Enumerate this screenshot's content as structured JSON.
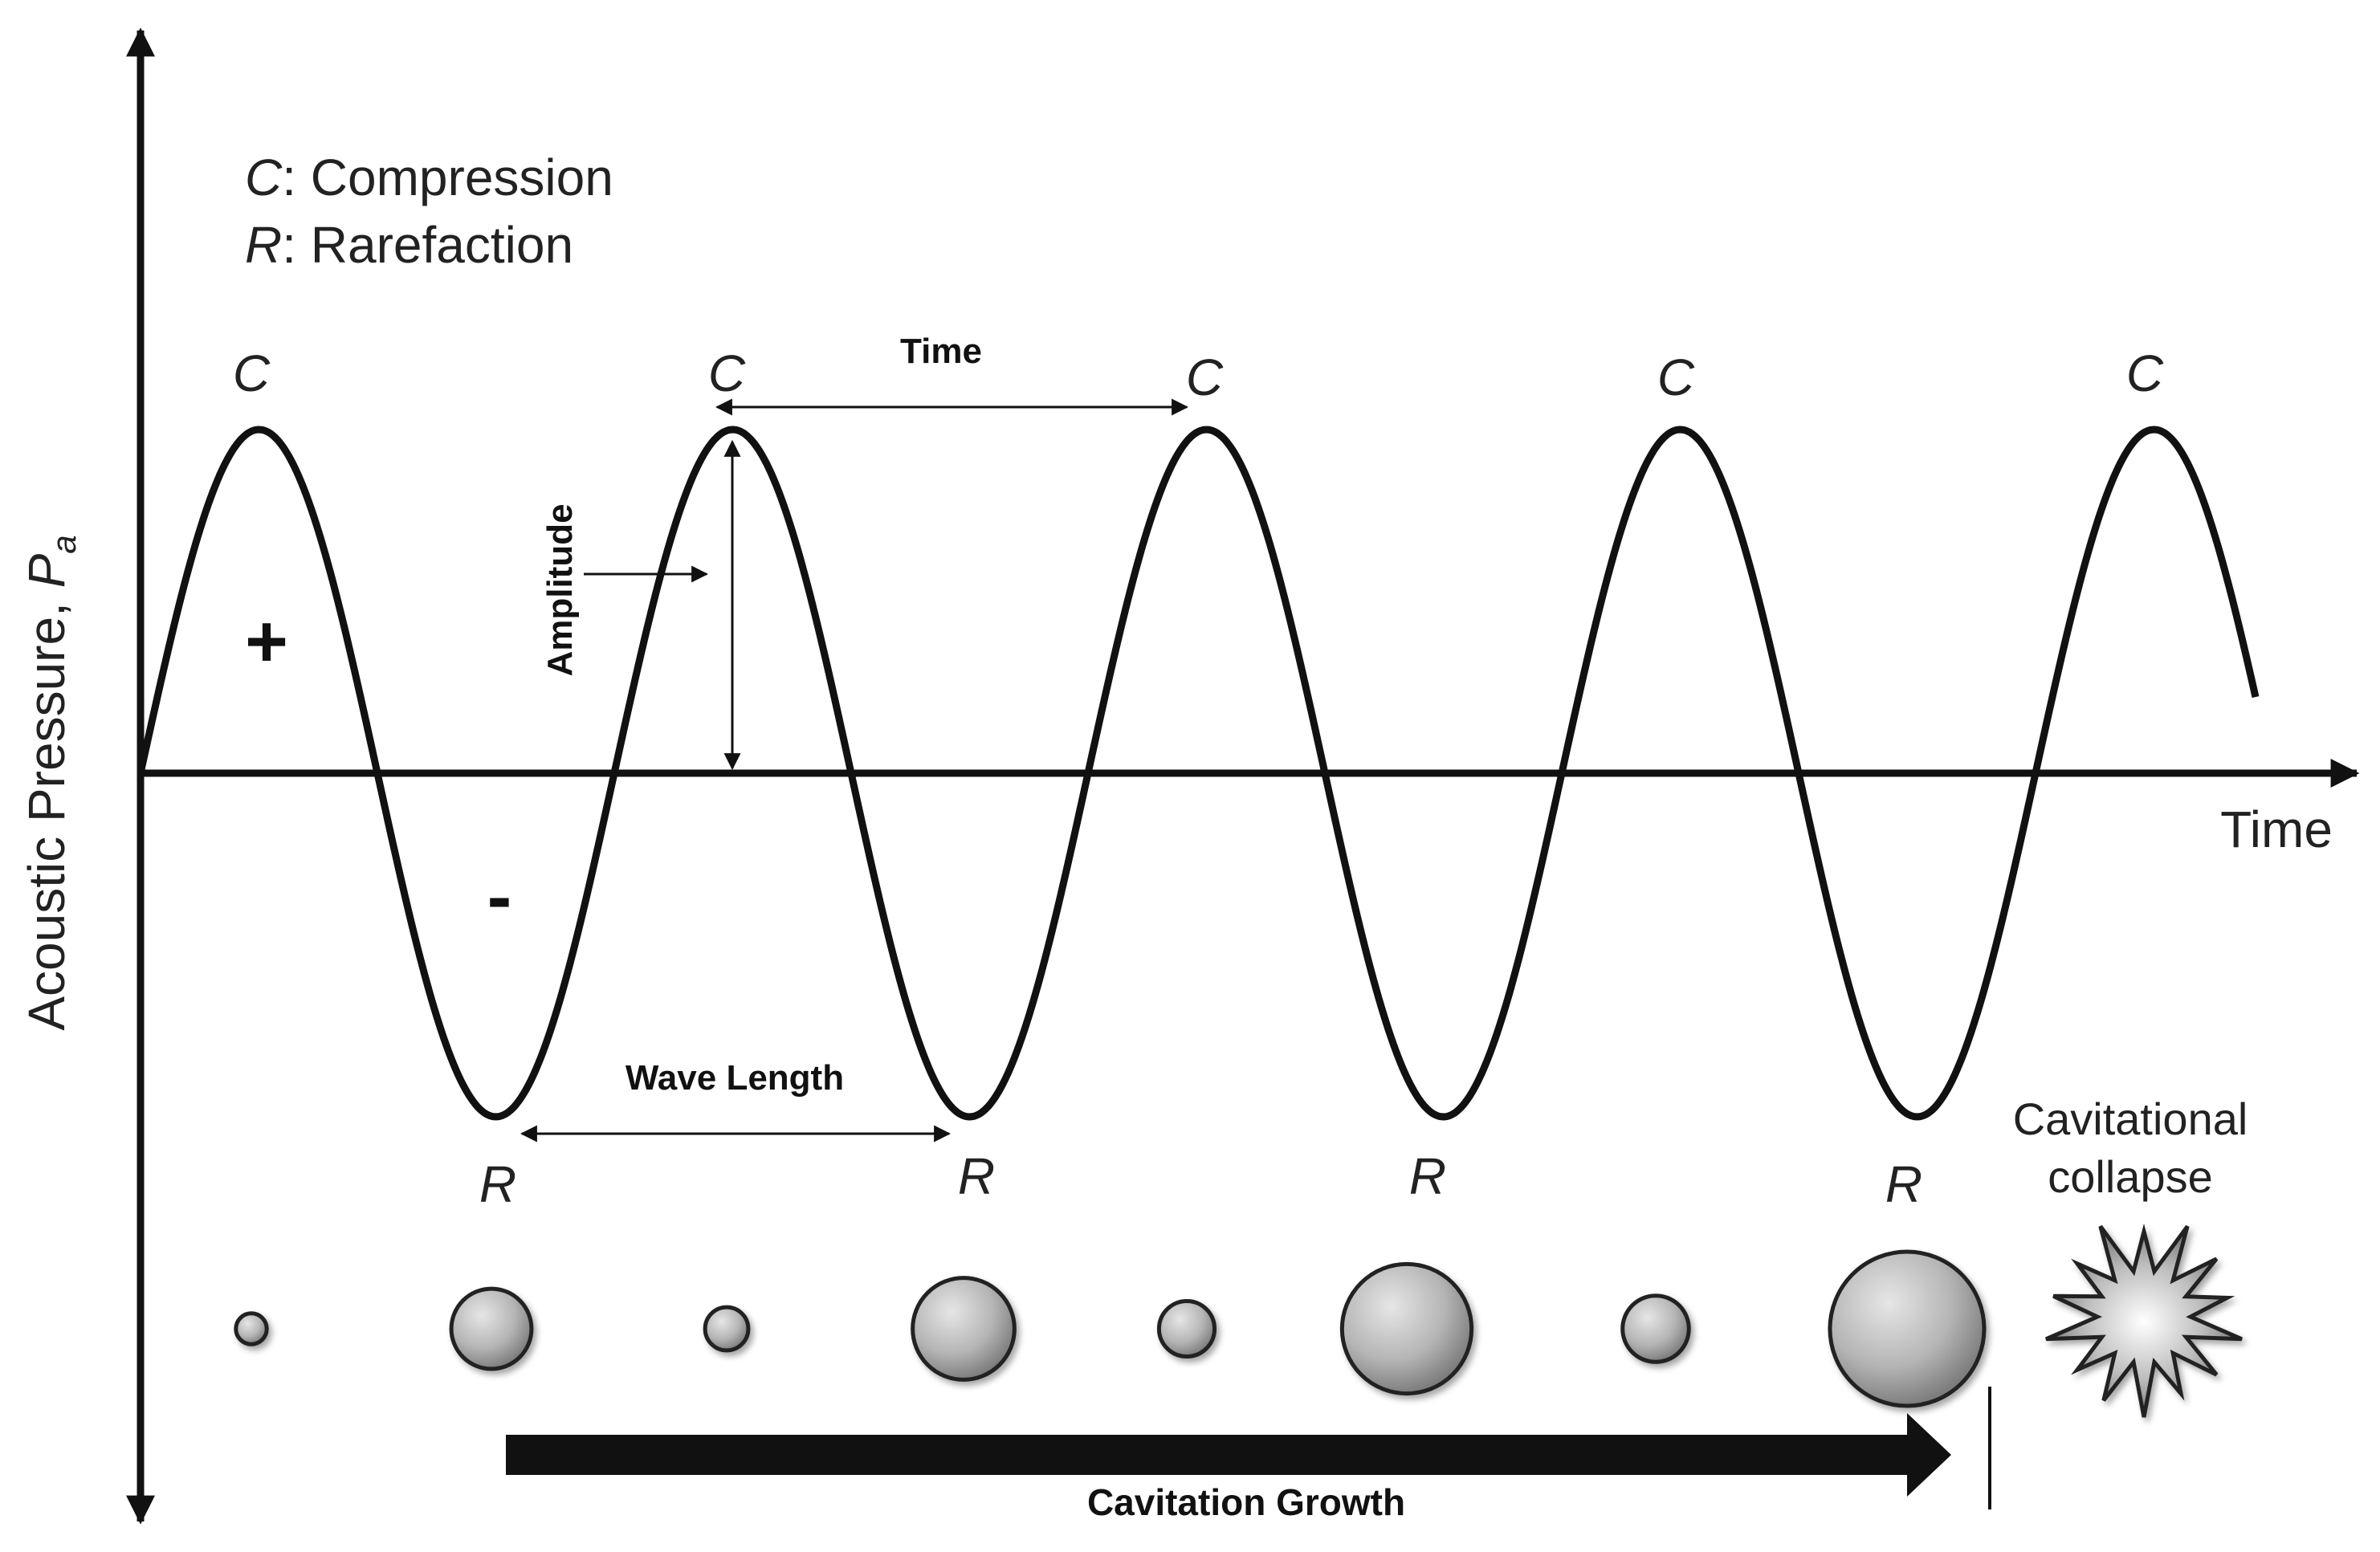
{
  "legend": {
    "c_symbol": "C",
    "c_text": ": Compression",
    "r_symbol": "R",
    "r_text": ": Rarefaction"
  },
  "y_axis_label_main": "Acoustic Pressure, ",
  "y_axis_label_symbol": "P",
  "y_axis_label_subscript": "a",
  "x_axis_label": "Time",
  "peak_labels": [
    "C",
    "C",
    "C",
    "C",
    "C"
  ],
  "trough_labels": [
    "R",
    "R",
    "R",
    "R"
  ],
  "plus_sign": "+",
  "minus_sign": "-",
  "period_label": "Time",
  "amplitude_label": "Amplitude",
  "wavelength_label": "Wave Length",
  "collapse_label_line1": "Cavitational",
  "collapse_label_line2": "collapse",
  "growth_label": "Cavitation Growth",
  "colors": {
    "line": "#111111",
    "bubble_light": "#e6e6e6",
    "bubble_mid": "#b5b5b5",
    "bubble_dark": "#6e6e6e",
    "text": "#222222"
  },
  "bubbles": [
    {
      "phase": "compression",
      "relative_size": 0.2
    },
    {
      "phase": "rarefaction",
      "relative_size": 0.52
    },
    {
      "phase": "compression",
      "relative_size": 0.28
    },
    {
      "phase": "rarefaction",
      "relative_size": 0.66
    },
    {
      "phase": "compression",
      "relative_size": 0.36
    },
    {
      "phase": "rarefaction",
      "relative_size": 0.84
    },
    {
      "phase": "compression",
      "relative_size": 0.43
    },
    {
      "phase": "rarefaction",
      "relative_size": 1.0
    }
  ]
}
